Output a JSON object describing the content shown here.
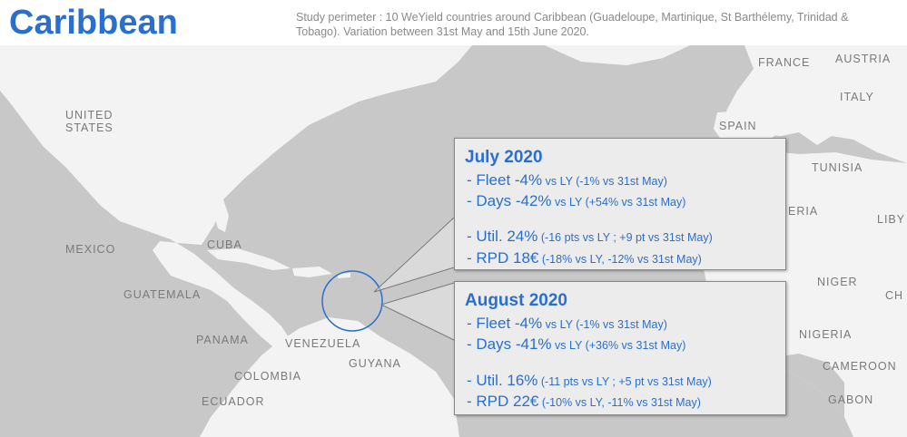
{
  "header": {
    "title": "Caribbean",
    "subtitle": "Study perimeter : 10 WeYield countries around Caribbean (Guadeloupe, Martinique, St Barthélemy, Trinidad & Tobago). Variation between 31st May and 15th June 2020."
  },
  "map": {
    "labels": {
      "united_states_1": "UNITED",
      "united_states_2": "STATES",
      "mexico": "MEXICO",
      "cuba": "CUBA",
      "guatemala": "GUATEMALA",
      "panama": "PANAMA",
      "venezuela": "VENEZUELA",
      "guyana": "GUYANA",
      "colombia": "COLOMBIA",
      "ecuador": "ECUADOR",
      "france": "FRANCE",
      "austria": "AUSTRIA",
      "italy": "ITALY",
      "spain": "SPAIN",
      "tunisia": "TUNISIA",
      "algeria_partial": "ERIA",
      "libya_partial": "LIBY",
      "niger": "NIGER",
      "chad_partial": "CH",
      "nigeria": "NIGERIA",
      "cameroon": "CAMEROON",
      "gabon": "GABON"
    }
  },
  "july": {
    "title": "July 2020",
    "fleet_main": " - Fleet -4%",
    "fleet_detail": " vs LY (-1% vs  31st May)",
    "days_main": " - Days -42%",
    "days_detail": " vs LY (+54% vs  31st May)",
    "util_main": " - Util. 24%",
    "util_detail": " (-16 pts vs LY ; +9 pt vs  31st May)",
    "rpd_main": " - RPD 18€",
    "rpd_detail": " (-18% vs LY, -12% vs  31st May)"
  },
  "august": {
    "title": "August 2020",
    "fleet_main": " - Fleet -4%",
    "fleet_detail": " vs LY (-1% vs  31st May)",
    "days_main": " - Days -41%",
    "days_detail": " vs LY (+36% vs  31st May)",
    "util_main": " - Util. 16%",
    "util_detail": " (-11 pts vs LY ; +5 pt vs  31st May)",
    "rpd_main": " - RPD 22€",
    "rpd_detail": " (-10% vs LY, -11% vs  31st May)"
  },
  "colors": {
    "accent": "#2a6fd0",
    "ocean": "#c8c8c8",
    "land": "#f3f3f3",
    "callout_bg": "#ececec"
  }
}
